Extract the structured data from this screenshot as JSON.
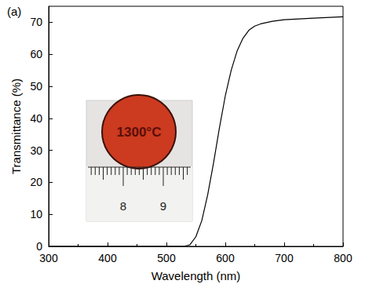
{
  "chart_data": {
    "type": "line",
    "title": "(a)",
    "x_label": "Wavelength (nm)",
    "y_label": "Transmittance (%)",
    "x": [
      300,
      400,
      500,
      520,
      530,
      540,
      550,
      560,
      570,
      580,
      590,
      600,
      610,
      620,
      630,
      640,
      650,
      660,
      680,
      700,
      750,
      800
    ],
    "values": [
      0,
      0,
      0,
      0,
      0,
      0.5,
      3,
      8,
      16,
      26,
      37,
      47,
      55,
      61,
      65,
      67.5,
      68.8,
      69.5,
      70.3,
      70.8,
      71.3,
      71.7
    ],
    "color": "#000000",
    "xlim": [
      300,
      800
    ],
    "xticks": [
      300,
      400,
      500,
      600,
      700,
      800
    ],
    "ylim": [
      0,
      75
    ],
    "yticks": [
      0,
      10,
      20,
      30,
      40,
      50,
      60,
      70
    ],
    "grid": false,
    "annotations": [
      {
        "text": "1300°C"
      }
    ],
    "inset": {
      "scale_labels": [
        "8",
        "9"
      ]
    }
  }
}
